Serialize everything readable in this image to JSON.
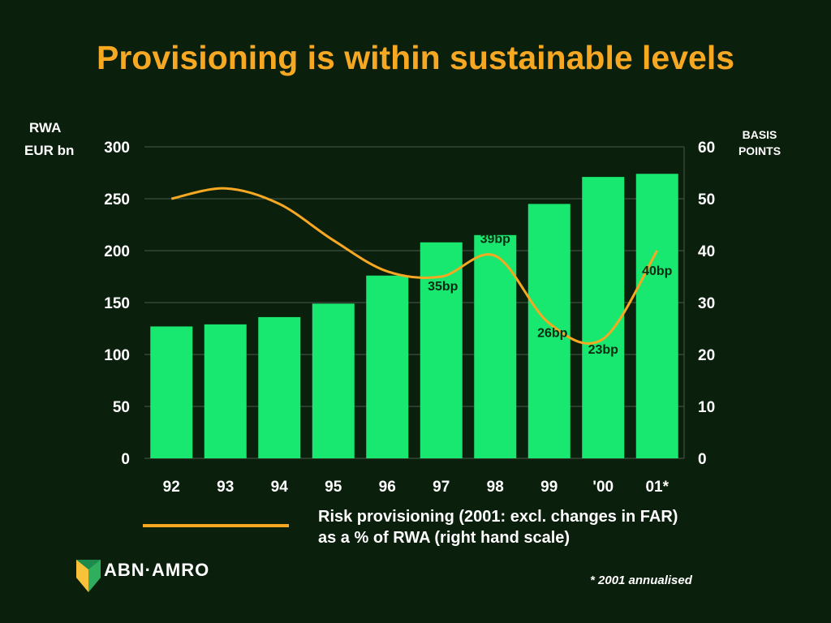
{
  "title": "Provisioning is within sustainable levels",
  "left_axis_unit_line1": "RWA",
  "left_axis_unit_line2": "EUR bn",
  "right_axis_unit_line1": "BASIS",
  "right_axis_unit_line2": "POINTS",
  "legend": {
    "line1": "Risk provisioning (2001: excl. changes in FAR)",
    "line2": "as a % of RWA (right hand scale)"
  },
  "footnote": "* 2001 annualised",
  "logo_text": "ABN·AMRO",
  "colors": {
    "background": "#0b1f0d",
    "bar": "#18e870",
    "line": "#f7a823",
    "title": "#f7a823",
    "gridline": "#4a5a4a",
    "bp_label": "#0b2a10"
  },
  "chart_data": {
    "type": "bar",
    "categories": [
      "92",
      "93",
      "94",
      "95",
      "96",
      "97",
      "98",
      "99",
      "'00",
      "01*"
    ],
    "series": [
      {
        "axis": "left",
        "type": "bar",
        "values": [
          127,
          129,
          136,
          149,
          176,
          208,
          215,
          245,
          271,
          274
        ]
      },
      {
        "axis": "right",
        "type": "line",
        "name": "Risk provisioning (2001: excl. changes in FAR) as a % of RWA (right hand scale)",
        "x": [
          "92",
          "93",
          "94",
          "95",
          "96",
          "97",
          "98",
          "99",
          "'00",
          "01*"
        ],
        "values": [
          50,
          52,
          49,
          42,
          36,
          35,
          39,
          26,
          23,
          40
        ]
      }
    ],
    "left_axis": {
      "ylim": [
        0,
        300
      ],
      "ticks": [
        "0",
        "50",
        "100",
        "150",
        "200",
        "250",
        "300"
      ]
    },
    "right_axis": {
      "ylim": [
        0,
        60
      ],
      "ticks": [
        "0",
        "10",
        "20",
        "30",
        "40",
        "50",
        "60"
      ]
    },
    "data_labels": [
      {
        "category": "97",
        "text": "35bp"
      },
      {
        "category": "98",
        "text": "39bp"
      },
      {
        "category": "99",
        "text": "26bp"
      },
      {
        "category": "'00",
        "text": "23bp"
      },
      {
        "category": "01*",
        "text": "40bp"
      }
    ],
    "grid": true
  }
}
